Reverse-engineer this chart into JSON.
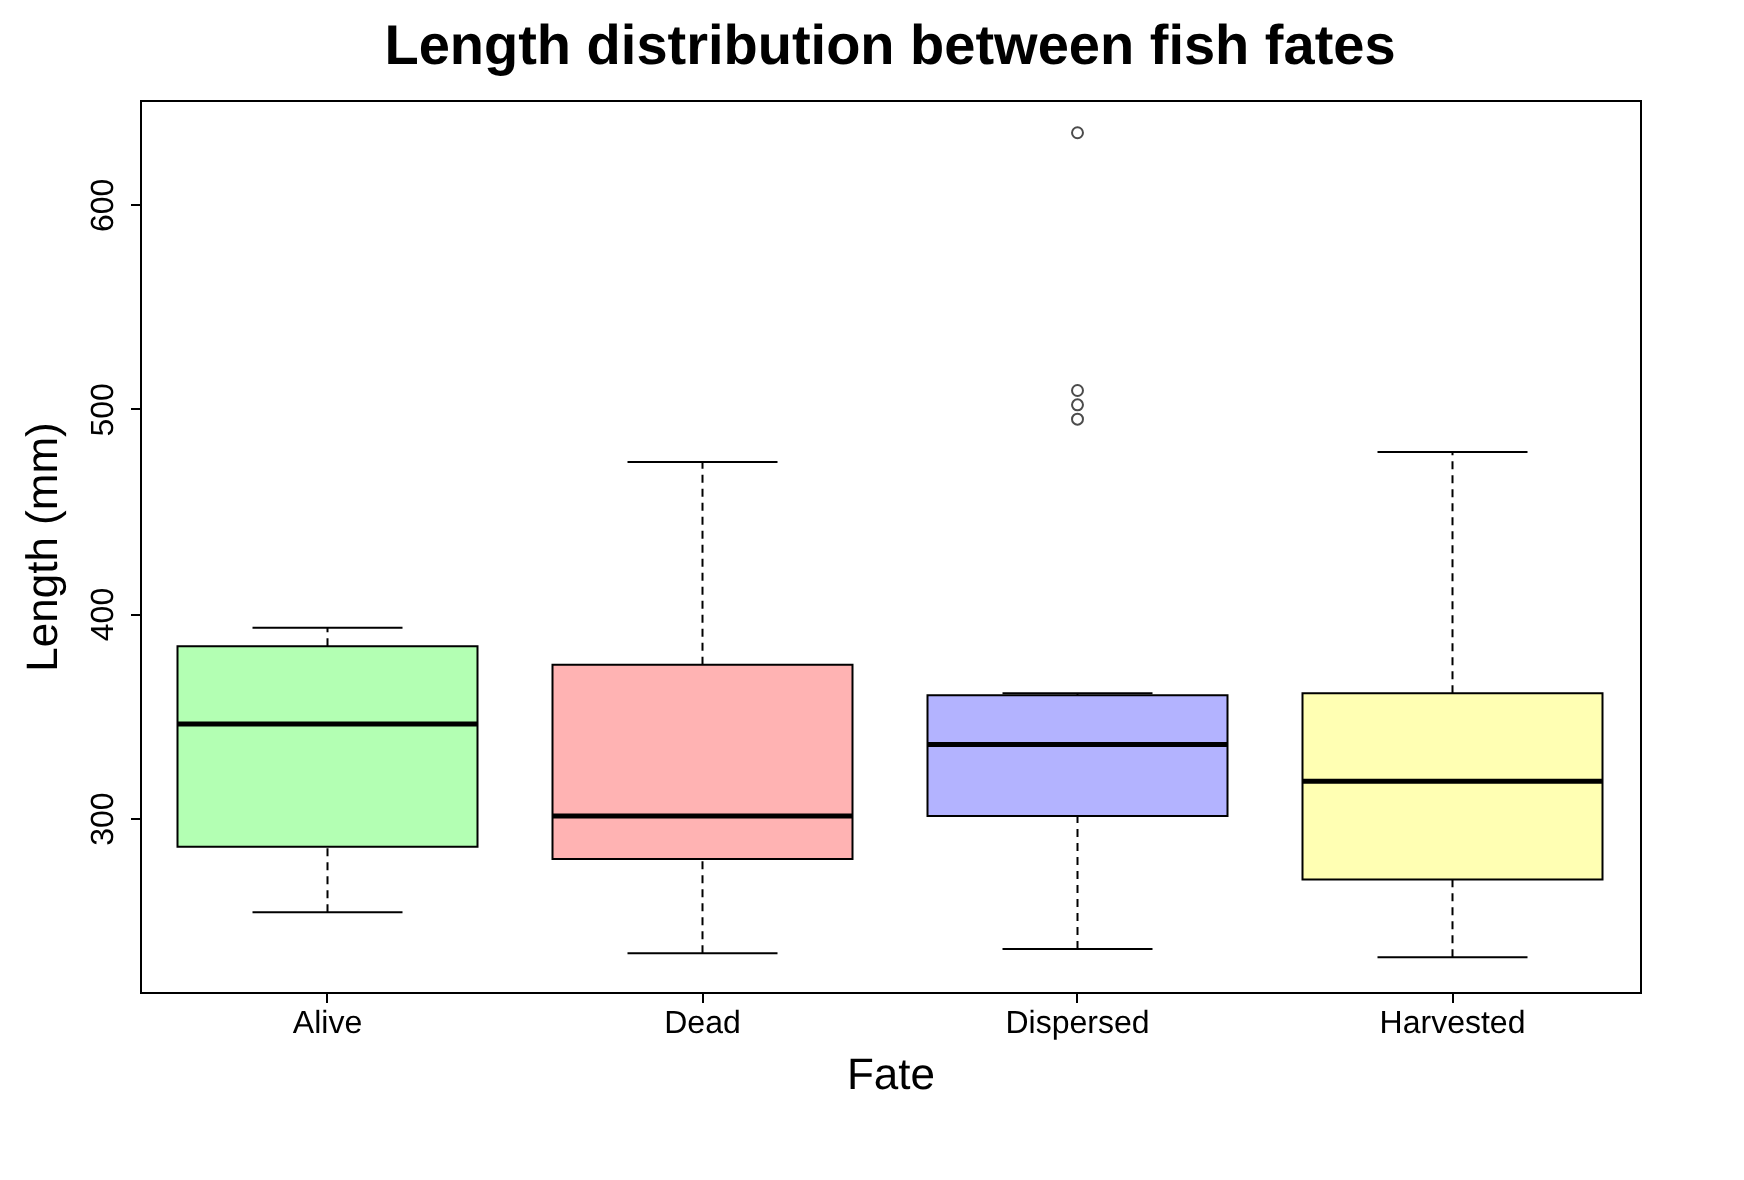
{
  "chart_data": {
    "type": "box",
    "title": "Length distribution between fish fates",
    "xlabel": "Fate",
    "ylabel": "Length (mm)",
    "categories": [
      "Alive",
      "Dead",
      "Dispersed",
      "Harvested"
    ],
    "colors": [
      "#b3ffb3",
      "#ffb3b3",
      "#b3b3ff",
      "#ffffb3"
    ],
    "boxes": [
      {
        "low": 254,
        "q1": 286,
        "median": 346,
        "q3": 384,
        "high": 393
      },
      {
        "low": 234,
        "q1": 280,
        "median": 301,
        "q3": 375,
        "high": 474
      },
      {
        "low": 236,
        "q1": 301,
        "median": 336,
        "q3": 360,
        "high": 361,
        "outliers": [
          635,
          509,
          502,
          495
        ]
      },
      {
        "low": 232,
        "q1": 270,
        "median": 318,
        "q3": 361,
        "high": 479
      }
    ],
    "ylim": [
      215,
      651
    ],
    "yticks": [
      300,
      400,
      500,
      600
    ],
    "grid": false,
    "legend": false
  }
}
